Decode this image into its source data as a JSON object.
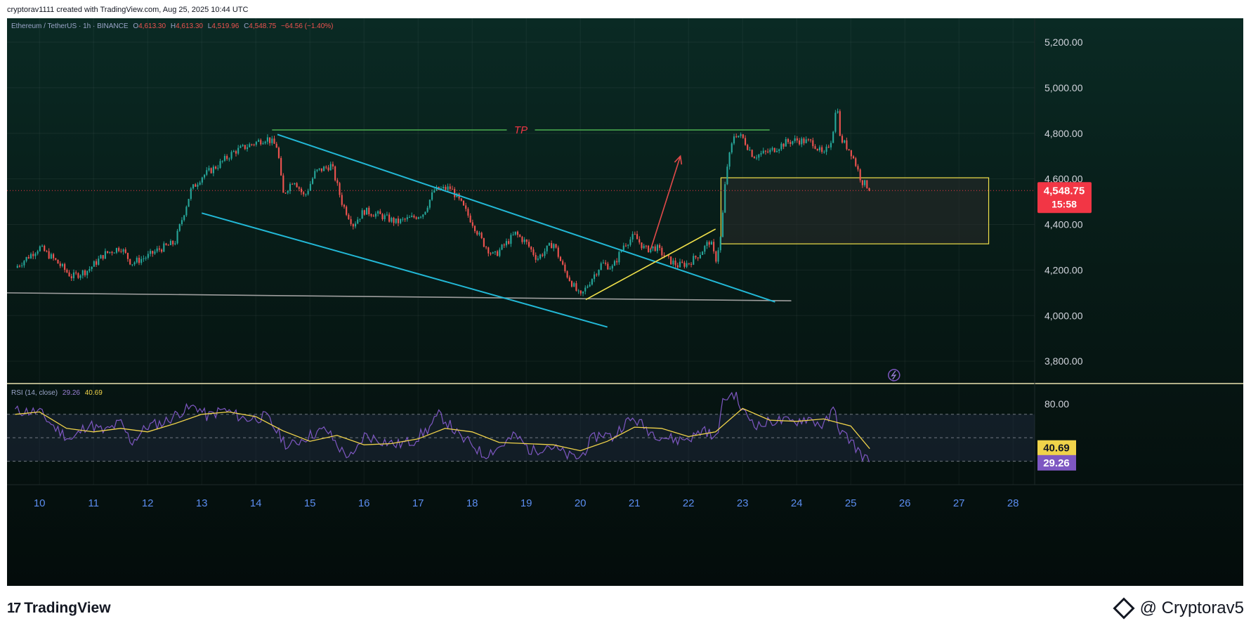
{
  "header": {
    "caption": "cryptorav1111 created with TradingView.com, Aug 25, 2025 10:44 UTC"
  },
  "legend": {
    "symbol": "Ethereum / TetherUS · 1h · BINANCE",
    "o_label": "O",
    "o": "4,613.30",
    "h_label": "H",
    "h": "4,613.30",
    "l_label": "L",
    "l": "4,519.96",
    "c_label": "C",
    "c": "4,548.75",
    "change": "−64.56 (−1.40%)"
  },
  "price_badge": {
    "price": "4,548.75",
    "countdown": "15:58"
  },
  "drawings": {
    "tp_label": "TP"
  },
  "rsi_panel": {
    "title": "RSI (14, close)",
    "rsi_value": "29.26",
    "ma_value": "40.69",
    "level_label": "80.00"
  },
  "footer": {
    "brand": "TradingView",
    "author": "@ Cryptorav5"
  },
  "colors": {
    "up": "#26a69a",
    "down": "#ef5350",
    "channel": "#22b8d6",
    "tp_line": "#4caf50",
    "tp_text": "#f23645",
    "box": "#f0e04a",
    "price_line": "#f23645",
    "rsi_line": "#7e57c2",
    "rsi_ma": "#f0d34a",
    "axis_text": "#d1d4dc",
    "badge_bg": "#f23645"
  },
  "chart_data": {
    "type": "candlestick",
    "symbol": "Ethereum / TetherUS",
    "interval": "1h",
    "exchange": "BINANCE",
    "y_ticks": [
      3800,
      4000,
      4200,
      4400,
      4600,
      4800,
      5000,
      5200
    ],
    "y_tick_labels": [
      "3,800.00",
      "4,000.00",
      "4,200.00",
      "4,400.00",
      "4,600.00",
      "4,800.00",
      "5,000.00",
      "5,200.00"
    ],
    "ylim": [
      3705,
      5305
    ],
    "x_ticks": [
      10,
      11,
      12,
      13,
      14,
      15,
      16,
      17,
      18,
      19,
      20,
      21,
      22,
      23,
      24,
      25,
      26,
      27,
      28
    ],
    "x_tick_labels": [
      "10",
      "11",
      "12",
      "13",
      "14",
      "15",
      "16",
      "17",
      "18",
      "19",
      "20",
      "21",
      "22",
      "23",
      "24",
      "25",
      "26",
      "27",
      "28"
    ],
    "xlim": [
      9.4,
      28.4
    ],
    "last_price": 4548.75,
    "close_path": [
      [
        9.55,
        4210
      ],
      [
        10.0,
        4300
      ],
      [
        10.3,
        4240
      ],
      [
        10.6,
        4170
      ],
      [
        10.9,
        4200
      ],
      [
        11.2,
        4270
      ],
      [
        11.5,
        4300
      ],
      [
        11.7,
        4230
      ],
      [
        12.0,
        4260
      ],
      [
        12.2,
        4290
      ],
      [
        12.5,
        4320
      ],
      [
        12.8,
        4550
      ],
      [
        13.0,
        4610
      ],
      [
        13.3,
        4660
      ],
      [
        13.6,
        4720
      ],
      [
        13.9,
        4750
      ],
      [
        14.2,
        4780
      ],
      [
        14.4,
        4740
      ],
      [
        14.5,
        4530
      ],
      [
        14.7,
        4600
      ],
      [
        14.9,
        4520
      ],
      [
        15.1,
        4630
      ],
      [
        15.4,
        4660
      ],
      [
        15.6,
        4490
      ],
      [
        15.8,
        4400
      ],
      [
        16.0,
        4460
      ],
      [
        16.3,
        4440
      ],
      [
        16.6,
        4410
      ],
      [
        16.9,
        4430
      ],
      [
        17.1,
        4450
      ],
      [
        17.3,
        4550
      ],
      [
        17.6,
        4560
      ],
      [
        17.8,
        4490
      ],
      [
        18.0,
        4410
      ],
      [
        18.2,
        4320
      ],
      [
        18.4,
        4260
      ],
      [
        18.6,
        4310
      ],
      [
        18.8,
        4360
      ],
      [
        19.0,
        4320
      ],
      [
        19.2,
        4250
      ],
      [
        19.5,
        4320
      ],
      [
        19.7,
        4200
      ],
      [
        19.9,
        4120
      ],
      [
        20.0,
        4080
      ],
      [
        20.2,
        4160
      ],
      [
        20.4,
        4230
      ],
      [
        20.6,
        4210
      ],
      [
        20.8,
        4310
      ],
      [
        21.0,
        4350
      ],
      [
        21.2,
        4290
      ],
      [
        21.4,
        4300
      ],
      [
        21.6,
        4250
      ],
      [
        21.8,
        4220
      ],
      [
        22.0,
        4230
      ],
      [
        22.2,
        4270
      ],
      [
        22.4,
        4330
      ],
      [
        22.5,
        4240
      ],
      [
        22.6,
        4350
      ],
      [
        22.7,
        4640
      ],
      [
        22.85,
        4800
      ],
      [
        23.0,
        4780
      ],
      [
        23.2,
        4700
      ],
      [
        23.5,
        4720
      ],
      [
        23.8,
        4760
      ],
      [
        24.0,
        4770
      ],
      [
        24.3,
        4760
      ],
      [
        24.5,
        4700
      ],
      [
        24.65,
        4780
      ],
      [
        24.75,
        4940
      ],
      [
        24.8,
        4780
      ],
      [
        25.0,
        4720
      ],
      [
        25.1,
        4660
      ],
      [
        25.2,
        4590
      ],
      [
        25.3,
        4570
      ],
      [
        25.35,
        4548.75
      ]
    ],
    "drawings": {
      "tp_line": {
        "start_day": 14.3,
        "end_day": 23.5,
        "price": 4815,
        "label": "TP"
      },
      "channel_upper": [
        [
          14.4,
          4795
        ],
        [
          23.6,
          4060
        ]
      ],
      "channel_lower": [
        [
          13.0,
          4450
        ],
        [
          20.5,
          3950
        ]
      ],
      "support_line": [
        [
          9.4,
          4100
        ],
        [
          23.9,
          4065
        ]
      ],
      "breakout_line": [
        [
          20.1,
          4070
        ],
        [
          22.5,
          4380
        ]
      ],
      "arrow": [
        [
          21.3,
          4290
        ],
        [
          21.85,
          4700
        ]
      ],
      "zone_box": {
        "start_day": 22.6,
        "end_day": 27.55,
        "top": 4605,
        "bottom": 4315
      },
      "last_price_line": 4548.75
    },
    "rsi": {
      "title": "RSI (14, close)",
      "level_labels": [
        "80.00"
      ],
      "bands": [
        70,
        50,
        30
      ],
      "ylim": [
        10,
        95
      ],
      "rsi_path": [
        [
          9.55,
          73
        ],
        [
          10.0,
          72
        ],
        [
          10.3,
          58
        ],
        [
          10.6,
          48
        ],
        [
          10.9,
          62
        ],
        [
          11.2,
          55
        ],
        [
          11.5,
          63
        ],
        [
          11.7,
          46
        ],
        [
          12.0,
          60
        ],
        [
          12.3,
          63
        ],
        [
          12.6,
          72
        ],
        [
          12.9,
          77
        ],
        [
          13.1,
          68
        ],
        [
          13.4,
          74
        ],
        [
          13.8,
          66
        ],
        [
          14.2,
          68
        ],
        [
          14.4,
          55
        ],
        [
          14.6,
          42
        ],
        [
          14.9,
          50
        ],
        [
          15.1,
          54
        ],
        [
          15.3,
          57
        ],
        [
          15.6,
          38
        ],
        [
          15.8,
          33
        ],
        [
          16.0,
          52
        ],
        [
          16.3,
          48
        ],
        [
          16.6,
          44
        ],
        [
          16.9,
          47
        ],
        [
          17.2,
          58
        ],
        [
          17.4,
          70
        ],
        [
          17.6,
          60
        ],
        [
          17.8,
          49
        ],
        [
          18.0,
          45
        ],
        [
          18.2,
          35
        ],
        [
          18.5,
          42
        ],
        [
          18.8,
          52
        ],
        [
          19.1,
          38
        ],
        [
          19.4,
          44
        ],
        [
          19.6,
          39
        ],
        [
          19.8,
          34
        ],
        [
          20.0,
          33
        ],
        [
          20.2,
          48
        ],
        [
          20.4,
          54
        ],
        [
          20.6,
          50
        ],
        [
          20.8,
          62
        ],
        [
          21.0,
          66
        ],
        [
          21.3,
          55
        ],
        [
          21.6,
          50
        ],
        [
          21.8,
          48
        ],
        [
          22.1,
          51
        ],
        [
          22.3,
          58
        ],
        [
          22.5,
          47
        ],
        [
          22.65,
          83
        ],
        [
          22.85,
          88
        ],
        [
          23.0,
          72
        ],
        [
          23.3,
          60
        ],
        [
          23.6,
          65
        ],
        [
          23.9,
          63
        ],
        [
          24.2,
          67
        ],
        [
          24.5,
          60
        ],
        [
          24.7,
          75
        ],
        [
          24.8,
          55
        ],
        [
          25.0,
          48
        ],
        [
          25.15,
          38
        ],
        [
          25.3,
          31
        ],
        [
          25.35,
          29.26
        ]
      ],
      "ma_path": [
        [
          9.55,
          70
        ],
        [
          10.0,
          72
        ],
        [
          10.5,
          58
        ],
        [
          11.0,
          55
        ],
        [
          11.5,
          58
        ],
        [
          12.0,
          55
        ],
        [
          12.5,
          62
        ],
        [
          13.0,
          70
        ],
        [
          13.5,
          72
        ],
        [
          14.0,
          68
        ],
        [
          14.5,
          56
        ],
        [
          15.0,
          47
        ],
        [
          15.5,
          52
        ],
        [
          16.0,
          44
        ],
        [
          16.5,
          45
        ],
        [
          17.0,
          49
        ],
        [
          17.5,
          58
        ],
        [
          18.0,
          55
        ],
        [
          18.5,
          46
        ],
        [
          19.0,
          45
        ],
        [
          19.5,
          44
        ],
        [
          20.0,
          39
        ],
        [
          20.5,
          47
        ],
        [
          21.0,
          59
        ],
        [
          21.5,
          58
        ],
        [
          22.0,
          51
        ],
        [
          22.5,
          55
        ],
        [
          23.0,
          75
        ],
        [
          23.5,
          65
        ],
        [
          24.0,
          64
        ],
        [
          24.5,
          66
        ],
        [
          25.0,
          60
        ],
        [
          25.35,
          40.69
        ]
      ],
      "last_rsi": 29.26,
      "last_ma": 40.69
    }
  }
}
